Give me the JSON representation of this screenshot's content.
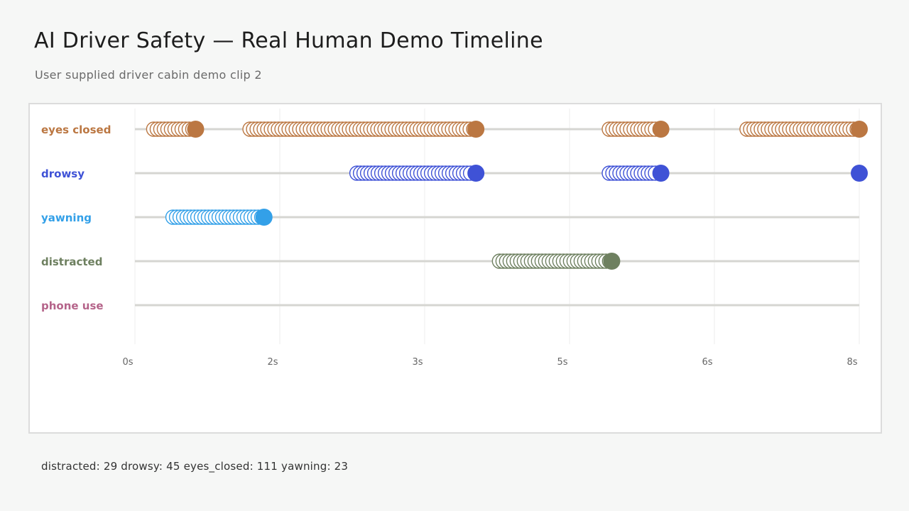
{
  "header": {
    "title": "AI Driver Safety — Real Human Demo Timeline",
    "subtitle": "User supplied driver cabin demo clip 2"
  },
  "summary": {
    "text": "distracted: 29 drowsy: 45 eyes_closed: 111 yawning: 23"
  },
  "chart_data": {
    "type": "scatter",
    "title": "",
    "xlabel": "",
    "ylabel": "",
    "x_ticks": [
      "0s",
      "2s",
      "3s",
      "5s",
      "6s",
      "8s"
    ],
    "xlim": [
      0,
      7.52
    ],
    "grid": true,
    "categories": [
      "eyes closed",
      "drowsy",
      "yawning",
      "distracted",
      "phone use"
    ],
    "series": [
      {
        "name": "eyes closed",
        "color": "#bb7742",
        "segments": [
          [
            0.18,
            0.63
          ],
          [
            1.18,
            3.54
          ],
          [
            4.91,
            5.46
          ],
          [
            6.34,
            7.52
          ]
        ]
      },
      {
        "name": "drowsy",
        "color": "#3f52d6",
        "segments": [
          [
            2.29,
            3.54
          ],
          [
            4.91,
            5.46
          ],
          [
            7.52,
            7.52
          ]
        ]
      },
      {
        "name": "yawning",
        "color": "#33a0e8",
        "segments": [
          [
            0.38,
            1.34
          ]
        ]
      },
      {
        "name": "distracted",
        "color": "#6e8060",
        "segments": [
          [
            3.77,
            4.95
          ]
        ]
      },
      {
        "name": "phone use",
        "color": "#b5648a",
        "segments": []
      }
    ]
  }
}
